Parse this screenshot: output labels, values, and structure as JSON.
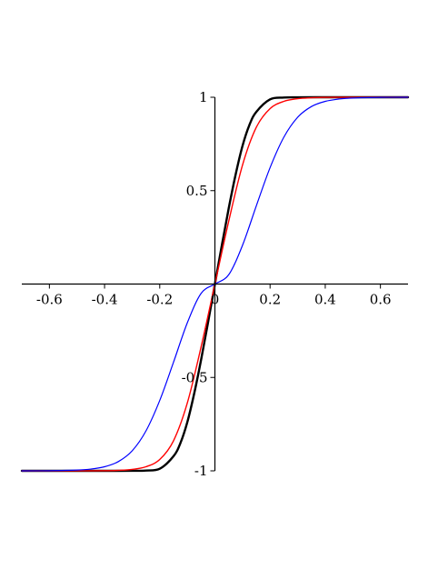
{
  "chart_data": {
    "type": "line",
    "title": "",
    "xlabel": "",
    "ylabel": "",
    "xlim": [
      -0.7,
      0.7
    ],
    "ylim": [
      -1,
      1
    ],
    "grid": false,
    "legend": "none",
    "x_ticks": [
      {
        "value": -0.6,
        "label": "-0.6"
      },
      {
        "value": -0.4,
        "label": "-0.4"
      },
      {
        "value": -0.2,
        "label": "-0.2"
      },
      {
        "value": 0,
        "label": "0"
      },
      {
        "value": 0.2,
        "label": "0.2"
      },
      {
        "value": 0.4,
        "label": "0.4"
      },
      {
        "value": 0.6,
        "label": "0.6"
      }
    ],
    "y_ticks": [
      {
        "value": 1,
        "label": "1"
      },
      {
        "value": 0.5,
        "label": "0.5"
      },
      {
        "value": -0.5,
        "label": "-0.5"
      },
      {
        "value": -1,
        "label": "-1"
      }
    ],
    "series": [
      {
        "color": "#000000",
        "x": [
          -0.7,
          -0.5,
          -0.4,
          -0.3,
          -0.25,
          -0.2,
          -0.15,
          -0.125,
          -0.1,
          -0.075,
          -0.05,
          -0.025,
          0,
          0.025,
          0.05,
          0.075,
          0.1,
          0.125,
          0.15,
          0.2,
          0.25,
          0.3,
          0.4,
          0.5,
          0.7
        ],
        "y": [
          -1,
          -1,
          -1,
          -0.9998,
          -0.9985,
          -0.9889,
          -0.9217,
          -0.8513,
          -0.7394,
          -0.5855,
          -0.405,
          -0.2062,
          0,
          0.2062,
          0.405,
          0.5855,
          0.7394,
          0.8513,
          0.9217,
          0.9889,
          0.9985,
          0.9998,
          1,
          1,
          1
        ]
      },
      {
        "color": "#ff0000",
        "x": [
          -0.7,
          -0.5,
          -0.45,
          -0.4,
          -0.35,
          -0.3,
          -0.25,
          -0.2,
          -0.15,
          -0.1,
          -0.05,
          0,
          0.05,
          0.1,
          0.15,
          0.2,
          0.25,
          0.3,
          0.35,
          0.4,
          0.45,
          0.5,
          0.7
        ],
        "y": [
          -1,
          -0.9999,
          -0.9997,
          -0.9991,
          -0.9973,
          -0.9923,
          -0.9781,
          -0.9391,
          -0.8389,
          -0.6367,
          -0.3359,
          0,
          0.3359,
          0.6367,
          0.8389,
          0.9391,
          0.9781,
          0.9923,
          0.9973,
          0.9991,
          0.9997,
          0.9999,
          1
        ]
      },
      {
        "color": "#0000ff",
        "x": [
          -0.7,
          -0.6,
          -0.5,
          -0.45,
          -0.4,
          -0.35,
          -0.3,
          -0.25,
          -0.2,
          -0.15,
          -0.1,
          -0.05,
          0,
          0.05,
          0.1,
          0.15,
          0.2,
          0.25,
          0.3,
          0.35,
          0.4,
          0.45,
          0.5,
          0.6,
          0.7
        ],
        "y": [
          -0.9999,
          -0.9993,
          -0.9959,
          -0.9905,
          -0.9781,
          -0.9504,
          -0.8929,
          -0.7864,
          -0.6231,
          -0.4183,
          -0.2073,
          -0.0499,
          0,
          0.0499,
          0.2073,
          0.4183,
          0.6231,
          0.7864,
          0.8929,
          0.9504,
          0.9781,
          0.9905,
          0.9959,
          0.9993,
          0.9999
        ]
      }
    ]
  }
}
